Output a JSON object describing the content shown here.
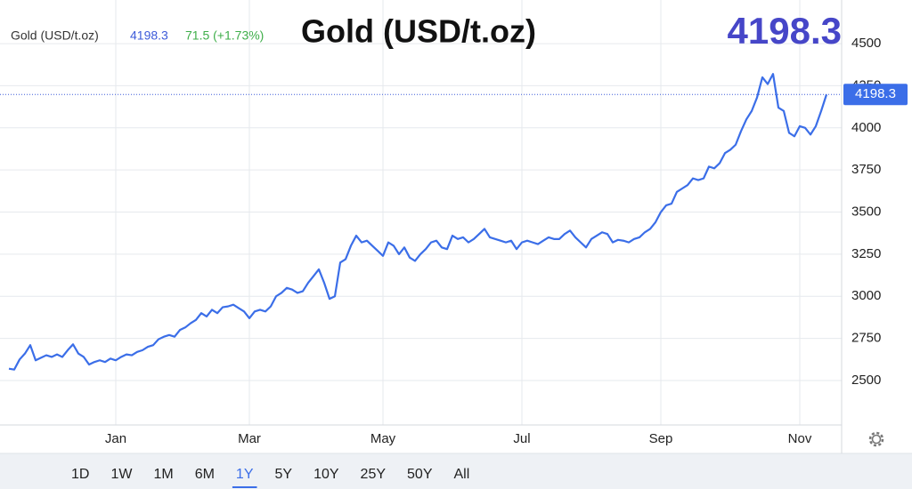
{
  "chart_data": {
    "type": "line",
    "title": "Gold (USD/t.oz)",
    "last_price": 4198.3,
    "change": "71.5 (+1.73%)",
    "categories": [
      null,
      null,
      null,
      null,
      null,
      null,
      null,
      null,
      null,
      null,
      null,
      null,
      null,
      null,
      null,
      null,
      null,
      null,
      null,
      null,
      "Jan",
      null,
      null,
      null,
      null,
      null,
      null,
      null,
      null,
      null,
      null,
      null,
      null,
      null,
      null,
      null,
      null,
      null,
      null,
      null,
      null,
      null,
      null,
      null,
      null,
      "Mar",
      null,
      null,
      null,
      null,
      null,
      null,
      null,
      null,
      null,
      null,
      null,
      null,
      null,
      null,
      null,
      null,
      null,
      null,
      null,
      null,
      null,
      null,
      null,
      null,
      "May",
      null,
      null,
      null,
      null,
      null,
      null,
      null,
      null,
      null,
      null,
      null,
      null,
      null,
      null,
      null,
      null,
      null,
      null,
      null,
      null,
      null,
      null,
      null,
      null,
      null,
      "Jul",
      null,
      null,
      null,
      null,
      null,
      null,
      null,
      null,
      null,
      null,
      null,
      null,
      null,
      null,
      null,
      null,
      null,
      null,
      null,
      null,
      null,
      null,
      null,
      null,
      null,
      "Sep",
      null,
      null,
      null,
      null,
      null,
      null,
      null,
      null,
      null,
      null,
      null,
      null,
      null,
      null,
      null,
      null,
      null,
      null,
      null,
      null,
      null,
      null,
      null,
      null,
      null,
      "Nov",
      null,
      null,
      null,
      null,
      null
    ],
    "series": [
      {
        "name": "Gold (USD/t.oz)",
        "color": "#3b6ee8",
        "values": [
          2570,
          2565,
          2625,
          2660,
          2710,
          2620,
          2635,
          2650,
          2640,
          2655,
          2640,
          2680,
          2715,
          2660,
          2640,
          2595,
          2610,
          2620,
          2610,
          2630,
          2620,
          2640,
          2655,
          2650,
          2670,
          2680,
          2700,
          2710,
          2745,
          2760,
          2770,
          2760,
          2800,
          2815,
          2840,
          2860,
          2900,
          2880,
          2920,
          2900,
          2935,
          2940,
          2950,
          2930,
          2910,
          2870,
          2910,
          2920,
          2910,
          2940,
          3000,
          3020,
          3050,
          3040,
          3020,
          3030,
          3080,
          3120,
          3160,
          3080,
          2985,
          3000,
          3200,
          3220,
          3300,
          3360,
          3320,
          3330,
          3300,
          3270,
          3240,
          3320,
          3300,
          3250,
          3290,
          3230,
          3210,
          3250,
          3280,
          3320,
          3330,
          3290,
          3280,
          3360,
          3340,
          3350,
          3320,
          3340,
          3370,
          3400,
          3350,
          3340,
          3330,
          3320,
          3330,
          3280,
          3320,
          3330,
          3320,
          3310,
          3330,
          3350,
          3340,
          3340,
          3370,
          3390,
          3350,
          3320,
          3290,
          3340,
          3360,
          3380,
          3370,
          3320,
          3335,
          3330,
          3320,
          3340,
          3350,
          3380,
          3400,
          3440,
          3500,
          3540,
          3550,
          3620,
          3640,
          3660,
          3700,
          3690,
          3700,
          3770,
          3760,
          3790,
          3850,
          3870,
          3900,
          3980,
          4050,
          4100,
          4180,
          4300,
          4260,
          4320,
          4120,
          4100,
          3970,
          3950,
          4010,
          4000,
          3960,
          4010,
          4100,
          4198.3
        ]
      }
    ],
    "ylim": [
      2236,
      4759
    ],
    "yticks": [
      2500,
      2750,
      3000,
      3250,
      3500,
      3750,
      4000,
      4250,
      4500
    ],
    "grid": true,
    "ranges": [
      "1D",
      "1W",
      "1M",
      "6M",
      "1Y",
      "5Y",
      "10Y",
      "25Y",
      "50Y",
      "All"
    ],
    "selected_range": 4
  }
}
